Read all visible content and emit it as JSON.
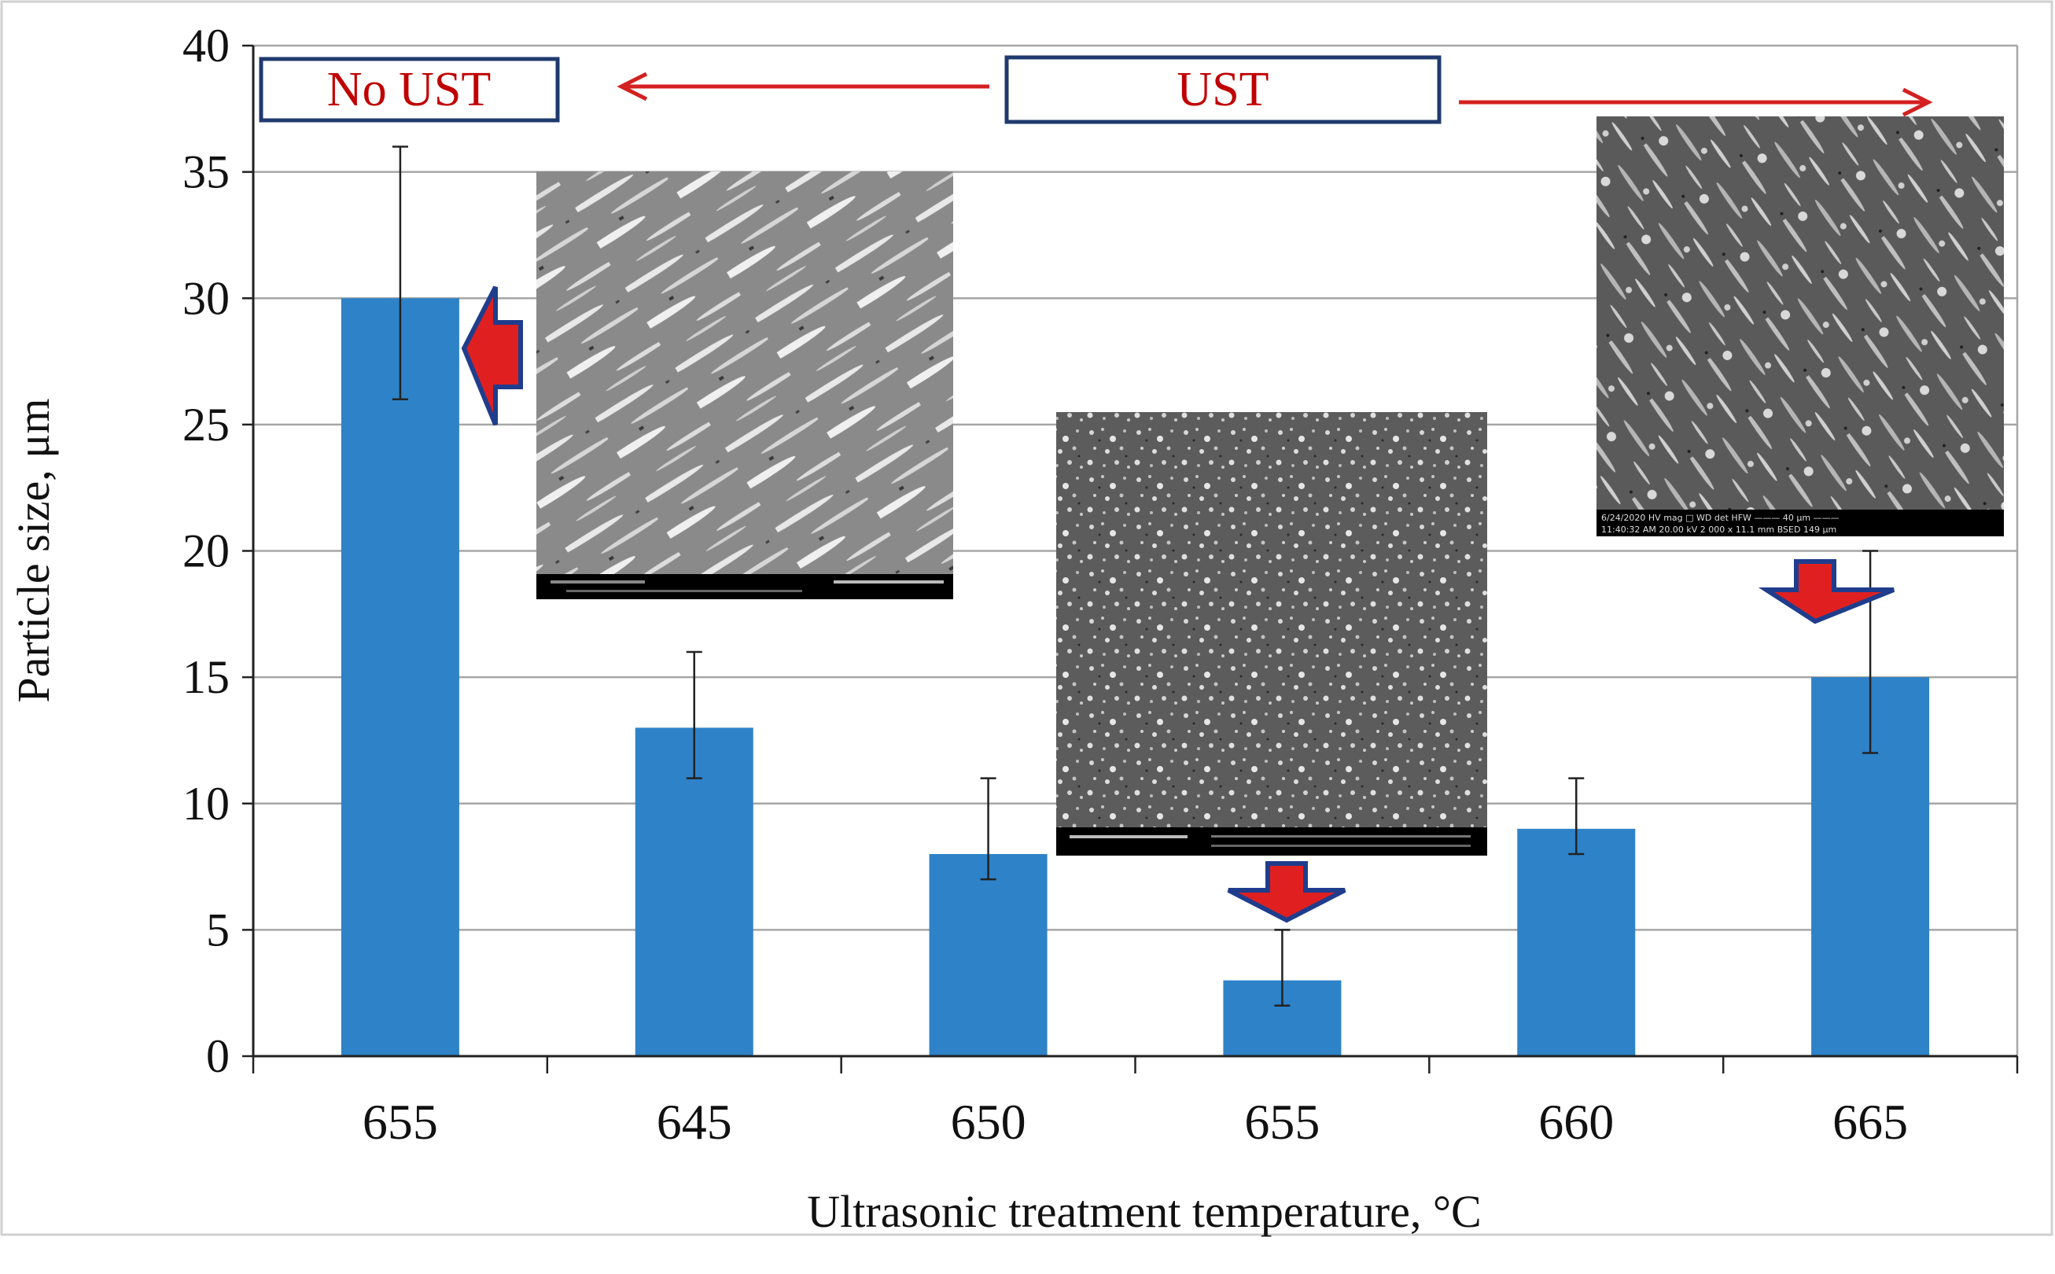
{
  "chart_data": {
    "type": "bar",
    "categories": [
      "655",
      "645",
      "650",
      "655",
      "660",
      "665"
    ],
    "values": [
      30,
      13,
      8,
      3,
      9,
      15
    ],
    "error_low": [
      26,
      11,
      7,
      2,
      8,
      12
    ],
    "error_high": [
      36,
      16,
      11,
      5,
      11,
      20
    ],
    "xlabel": "Ultrasonic treatment temperature, °C",
    "ylabel": "Particle size, μm",
    "ylim": [
      0,
      40
    ],
    "yticks": [
      "0",
      "5",
      "10",
      "15",
      "20",
      "25",
      "30",
      "35",
      "40"
    ],
    "ytick_values": [
      0,
      5,
      10,
      15,
      20,
      25,
      30,
      35,
      40
    ],
    "grid": "horizontal",
    "bar_color": "#2e82c8",
    "annotations": {
      "no_ust_label": "No UST",
      "ust_label": "UST"
    },
    "inset_images": [
      {
        "name": "sem-micrograph-no-ust",
        "points_to_category": 0,
        "description_icon": "sem-image-elongated-lamellae"
      },
      {
        "name": "sem-micrograph-655",
        "points_to_category": 3,
        "description_icon": "sem-image-fine-particles"
      },
      {
        "name": "sem-micrograph-665",
        "points_to_category": 5,
        "description_icon": "sem-image-mixed-structure"
      }
    ],
    "inset_footer_text": {
      "sem3_line1": "6/24/2020   HV    mag □   WD    det   HFW        ——— 40 μm ———",
      "sem3_line2": "11:40:32 AM  20.00 kV  2 000 x  11.1 mm  BSED  149 μm"
    }
  },
  "colors": {
    "bar": "#2e82c8",
    "arrow_red": "#e02020",
    "arrow_outline": "#1f3d8c",
    "label_border": "#1f3a6e",
    "label_text": "#c00000"
  }
}
